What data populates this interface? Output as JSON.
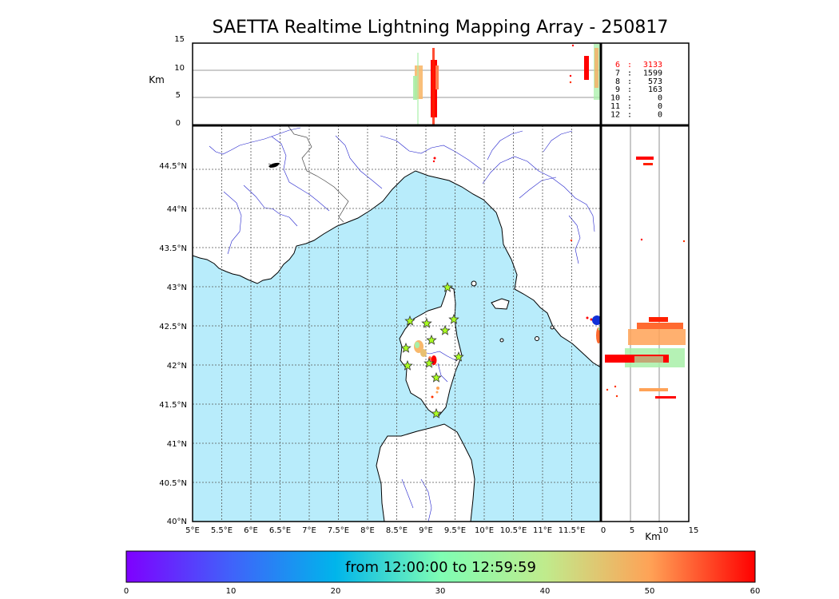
{
  "title": "SAETTA Realtime Lightning Mapping Array - 250817",
  "km_label": "Km",
  "alt_ticks": [
    "0",
    "5",
    "10",
    "15"
  ],
  "lat_ticks": [
    "40°N",
    "40.5°N",
    "41°N",
    "41.5°N",
    "42°N",
    "42.5°N",
    "43°N",
    "43.5°N",
    "44°N",
    "44.5°N"
  ],
  "lon_ticks": [
    "5°E",
    "5.5°E",
    "6°E",
    "6.5°E",
    "7°E",
    "7.5°E",
    "8°E",
    "8.5°E",
    "9°E",
    "9.5°E",
    "10°E",
    "10.5°E",
    "11°E",
    "11.5°E"
  ],
  "side_ticks": [
    "0",
    "5",
    "10",
    "15"
  ],
  "counts": [
    {
      "hour": "6",
      "value": "3133",
      "color": "#ff0000"
    },
    {
      "hour": "7",
      "value": "1599",
      "color": "#000000"
    },
    {
      "hour": "8",
      "value": "573",
      "color": "#000000"
    },
    {
      "hour": "9",
      "value": "163",
      "color": "#000000"
    },
    {
      "hour": "10",
      "value": "0",
      "color": "#000000"
    },
    {
      "hour": "11",
      "value": "0",
      "color": "#000000"
    },
    {
      "hour": "12",
      "value": "0",
      "color": "#000000"
    }
  ],
  "colorbar": {
    "label": "from 12:00:00 to 12:59:59",
    "ticks": [
      "0",
      "10",
      "20",
      "30",
      "40",
      "50",
      "60"
    ]
  },
  "colors": {
    "sea": "#b8ecfb",
    "land": "#ffffff",
    "rivers": "#2222cc",
    "grid": "#555555",
    "station": "#aaff22"
  }
}
